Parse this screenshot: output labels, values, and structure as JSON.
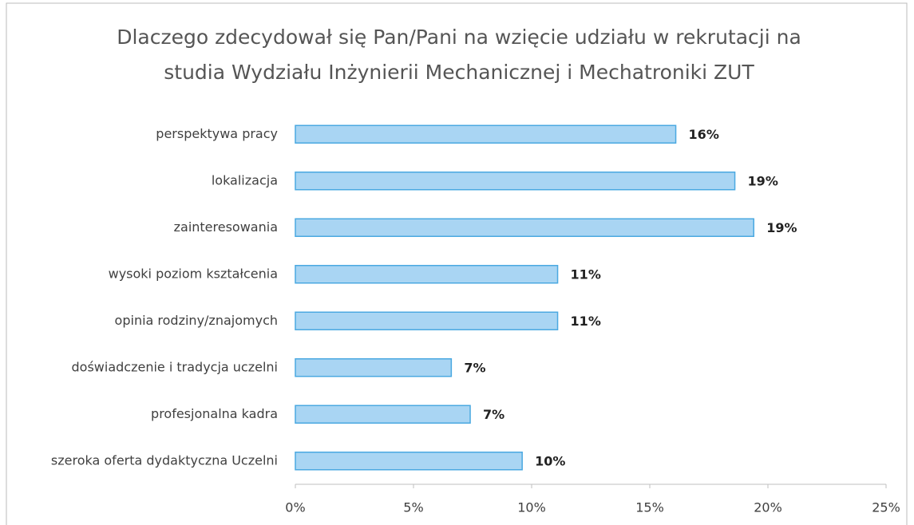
{
  "chart_data": {
    "type": "hbar",
    "title": [
      "Dlaczego zdecydował się Pan/Pani na wzięcie udziału w rekrutacji na",
      "studia Wydziału Inżynierii Mechanicznej i Mechatroniki ZUT"
    ],
    "categories": [
      "perspektywa pracy",
      "lokalizacja",
      "zainteresowania",
      "wysoki poziom kształcenia",
      "opinia rodziny/znajomych",
      "doświadczenie i tradycja uczelni",
      "profesjonalna kadra",
      "szeroka oferta dydaktyczna Uczelni"
    ],
    "values": [
      16.1,
      18.6,
      19.4,
      11.1,
      11.1,
      6.6,
      7.4,
      9.6
    ],
    "value_labels": [
      "16%",
      "19%",
      "19%",
      "11%",
      "11%",
      "7%",
      "7%",
      "10%"
    ],
    "color": "#a9d5f3",
    "edge_color": "#4ba9e1",
    "xlim": [
      0,
      25
    ],
    "xticks": [
      {
        "value": 0,
        "label": "0%"
      },
      {
        "value": 5,
        "label": "5%"
      },
      {
        "value": 10,
        "label": "10%"
      },
      {
        "value": 15,
        "label": "15%"
      },
      {
        "value": 20,
        "label": "20%"
      },
      {
        "value": 25,
        "label": "25%"
      }
    ],
    "grid": false
  }
}
